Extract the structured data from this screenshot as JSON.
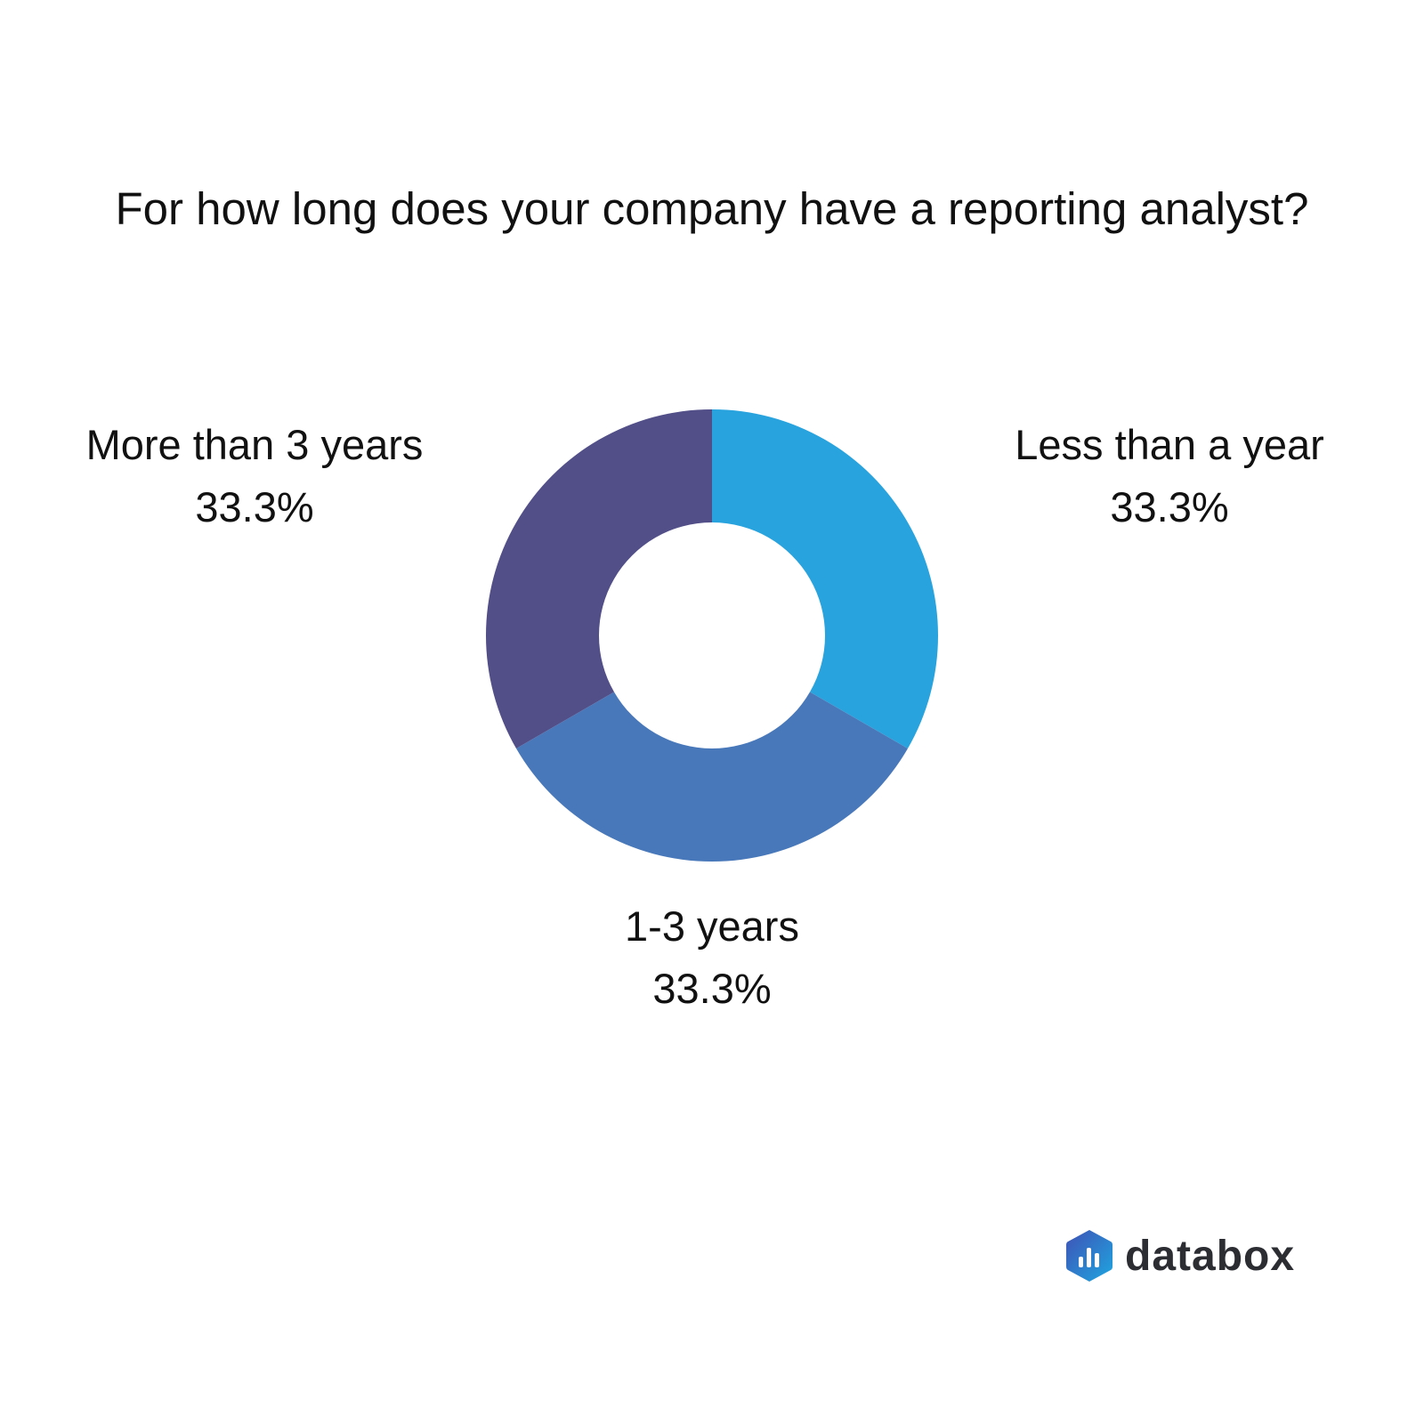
{
  "chart_data": {
    "type": "pie",
    "donut": true,
    "title": "For how long does your company have a reporting analyst?",
    "slices": [
      {
        "label": "Less than a year",
        "value": 33.3,
        "value_label": "33.3%",
        "color": "#29A3DE"
      },
      {
        "label": "1-3 years",
        "value": 33.3,
        "value_label": "33.3%",
        "color": "#4878B9"
      },
      {
        "label": "More than 3 years",
        "value": 33.3,
        "value_label": "33.3%",
        "color": "#514E88"
      }
    ]
  },
  "brand": {
    "name": "databox",
    "colors": [
      "#3F51B5",
      "#1EA7E1"
    ]
  }
}
